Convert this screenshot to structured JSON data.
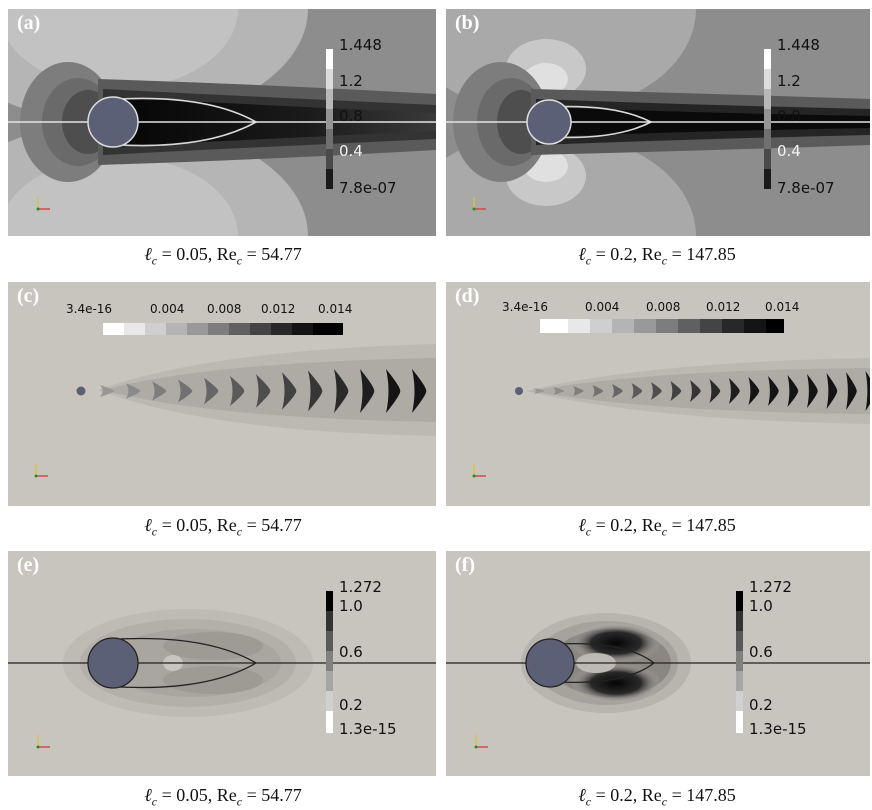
{
  "panels": [
    {
      "id": "a",
      "tag": "(a)",
      "caption": {
        "symbol": "ℓ",
        "sub": "c",
        "value": " = 0.05, Re",
        "sub2": "c",
        "value2": " = 54.77"
      },
      "colorbar": {
        "orientation": "vertical",
        "labels": [
          "1.448",
          "1.2",
          "0.8",
          "0.4",
          "7.8e-07"
        ],
        "scheme": "dark-low"
      }
    },
    {
      "id": "b",
      "tag": "(b)",
      "caption": {
        "symbol": "ℓ",
        "sub": "c",
        "value": " = 0.2, Re",
        "sub2": "c",
        "value2": " = 147.85"
      },
      "colorbar": {
        "orientation": "vertical",
        "labels": [
          "1.448",
          "1.2",
          "0.8",
          "0.4",
          "7.8e-07"
        ],
        "scheme": "dark-low"
      }
    },
    {
      "id": "c",
      "tag": "(c)",
      "caption": {
        "symbol": "ℓ",
        "sub": "c",
        "value": " = 0.05, Re",
        "sub2": "c",
        "value2": " = 54.77"
      },
      "colorbar": {
        "orientation": "horizontal",
        "labels": [
          "3.4e-16",
          "0.004",
          "0.008",
          "0.012",
          "0.014"
        ],
        "scheme": "light-low"
      }
    },
    {
      "id": "d",
      "tag": "(d)",
      "caption": {
        "symbol": "ℓ",
        "sub": "c",
        "value": " = 0.2, Re",
        "sub2": "c",
        "value2": " = 147.85"
      },
      "colorbar": {
        "orientation": "horizontal",
        "labels": [
          "3.4e-16",
          "0.004",
          "0.008",
          "0.012",
          "0.014"
        ],
        "scheme": "light-low"
      }
    },
    {
      "id": "e",
      "tag": "(e)",
      "caption": {
        "symbol": "ℓ",
        "sub": "c",
        "value": " = 0.05, Re",
        "sub2": "c",
        "value2": " = 54.77"
      },
      "colorbar": {
        "orientation": "vertical",
        "labels": [
          "1.272",
          "1.0",
          "0.6",
          "0.2",
          "1.3e-15"
        ],
        "scheme": "light-low"
      }
    },
    {
      "id": "f",
      "tag": "(f)",
      "caption": {
        "symbol": "ℓ",
        "sub": "c",
        "value": " = 0.2, Re",
        "sub2": "c",
        "value2": " = 147.85"
      },
      "colorbar": {
        "orientation": "vertical",
        "labels": [
          "1.272",
          "1.0",
          "0.6",
          "0.2",
          "1.3e-15"
        ],
        "scheme": "light-low"
      }
    }
  ],
  "colors": {
    "cylinder": "#5c6077",
    "background_light": "#c8c5be",
    "background_dark": "#8c8c8c"
  }
}
